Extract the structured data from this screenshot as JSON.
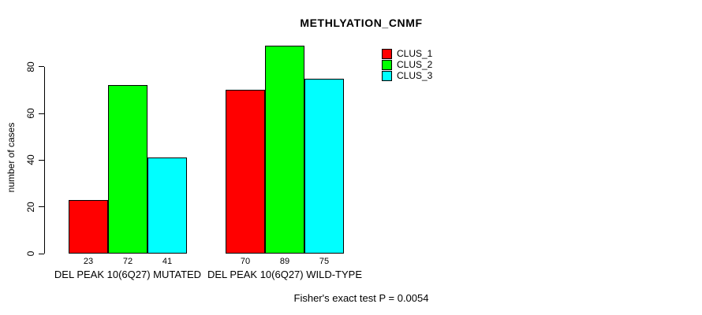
{
  "chart_data": {
    "type": "bar",
    "title": "METHLYATION_CNMF",
    "ylabel": "number of cases",
    "xlabel": "",
    "annotation": "Fisher's exact test P = 0.0054",
    "categories": [
      "DEL PEAK 10(6Q27) MUTATED",
      "DEL PEAK 10(6Q27) WILD-TYPE"
    ],
    "series": [
      {
        "name": "CLUS_1",
        "color": "#FF0000",
        "values": [
          23,
          70
        ]
      },
      {
        "name": "CLUS_2",
        "color": "#00FF00",
        "values": [
          72,
          89
        ]
      },
      {
        "name": "CLUS_3",
        "color": "#00FFFF",
        "values": [
          41,
          75
        ]
      }
    ],
    "bar_value_labels": [
      [
        23,
        72,
        41
      ],
      [
        70,
        89,
        75
      ]
    ],
    "yticks": [
      0,
      20,
      40,
      60,
      80
    ],
    "ylim": [
      0,
      89
    ],
    "grid": false,
    "legend_position": "top-right",
    "axis_color": "#000000",
    "background_color": "#FFFFFF"
  }
}
